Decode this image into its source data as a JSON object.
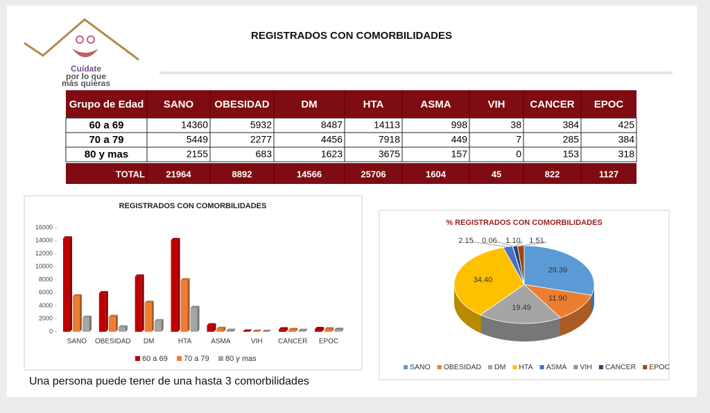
{
  "header": {
    "logo": [
      "Cuídate",
      "por lo que",
      "más quieras"
    ],
    "title": "REGISTRADOS CON COMORBILIDADES"
  },
  "table": {
    "columns": [
      "Grupo de Edad",
      "SANO",
      "OBESIDAD",
      "DM",
      "HTA",
      "ASMA",
      "VIH",
      "CANCER",
      "EPOC"
    ],
    "rows": [
      [
        "60 a 69",
        14360,
        5932,
        8487,
        14113,
        998,
        38,
        384,
        425
      ],
      [
        "70 a 79",
        5449,
        2277,
        4456,
        7918,
        449,
        7,
        285,
        384
      ],
      [
        "80 y mas",
        2155,
        683,
        1623,
        3675,
        157,
        0,
        153,
        318
      ]
    ],
    "total": [
      "TOTAL",
      21964,
      8892,
      14566,
      25706,
      1604,
      45,
      822,
      1127
    ]
  },
  "chart_data": [
    {
      "type": "bar",
      "title": "REGISTRADOS CON COMORBILIDADES",
      "categories": [
        "SANO",
        "OBESIDAD",
        "DM",
        "HTA",
        "ASMA",
        "VIH",
        "CANCER",
        "EPOC"
      ],
      "series": [
        {
          "name": "60 a 69",
          "color": "#c00000",
          "values": [
            14360,
            5932,
            8487,
            14113,
            998,
            38,
            384,
            425
          ]
        },
        {
          "name": "70 a 79",
          "color": "#ed7d31",
          "values": [
            5449,
            2277,
            4456,
            7918,
            449,
            7,
            285,
            384
          ]
        },
        {
          "name": "80 y mas",
          "color": "#a5a5a5",
          "values": [
            2155,
            683,
            1623,
            3675,
            157,
            0,
            153,
            318
          ]
        }
      ],
      "ylim": [
        0,
        16000
      ],
      "yticks": [
        0,
        2000,
        4000,
        6000,
        8000,
        10000,
        12000,
        14000,
        16000
      ],
      "legend": "bottom"
    },
    {
      "type": "pie",
      "title": "% REGISTRADOS CON COMORBILIDADES",
      "categories": [
        "SANO",
        "OBESIDAD",
        "DM",
        "HTA",
        "ASMA",
        "VIH",
        "CANCER",
        "EPOC"
      ],
      "values": [
        29.39,
        11.9,
        19.49,
        34.4,
        2.15,
        0.06,
        1.1,
        1.51
      ],
      "value_labels": [
        "29.39",
        "11.90",
        "19.49",
        "34.40",
        "2.15",
        "0.06",
        "1.10",
        "1.51"
      ],
      "colors": [
        "#5b9bd5",
        "#ed7d31",
        "#a5a5a5",
        "#ffc000",
        "#4472c4",
        "#70ad47",
        "#264478",
        "#9e480e"
      ],
      "legend": "bottom"
    }
  ],
  "footnote": "Una persona puede tener de una hasta 3 comorbilidades"
}
